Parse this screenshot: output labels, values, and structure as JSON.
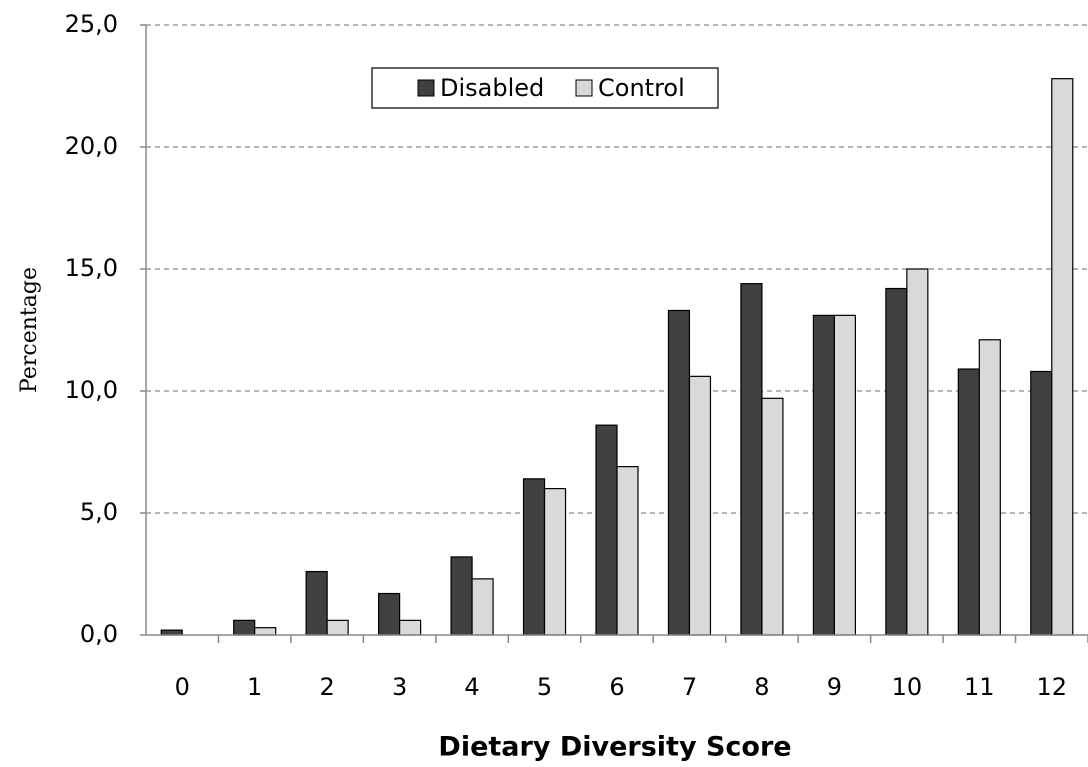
{
  "chart_data": {
    "type": "bar",
    "x_label": "Dietary Diversity Score",
    "y_label": "Percentage",
    "categories": [
      "0",
      "1",
      "2",
      "3",
      "4",
      "5",
      "6",
      "7",
      "8",
      "9",
      "10",
      "11",
      "12"
    ],
    "series": [
      {
        "name": "Disabled",
        "color": "#404040",
        "values": [
          0.2,
          0.6,
          2.6,
          1.7,
          3.2,
          6.4,
          8.6,
          13.3,
          14.4,
          13.1,
          14.2,
          10.9,
          10.8
        ]
      },
      {
        "name": "Control",
        "color": "#d9d9d9",
        "values": [
          0,
          0.3,
          0.6,
          0.6,
          2.3,
          6.0,
          6.9,
          10.6,
          9.7,
          13.1,
          15.0,
          12.1,
          22.8
        ]
      }
    ],
    "ylim": [
      0,
      25
    ],
    "yticks": [
      {
        "value": 0,
        "label": "0,0"
      },
      {
        "value": 5,
        "label": "5,0"
      },
      {
        "value": 10,
        "label": "10,0"
      },
      {
        "value": 15,
        "label": "15,0"
      },
      {
        "value": 20,
        "label": "20,0"
      },
      {
        "value": 25,
        "label": "25,0"
      }
    ],
    "grid": true,
    "legend": "top"
  }
}
